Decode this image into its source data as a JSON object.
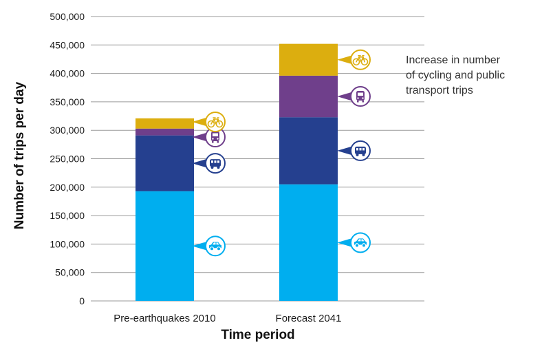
{
  "chart_data": {
    "type": "bar",
    "stacked": true,
    "categories": [
      "Pre-earthquakes 2010",
      "Forecast 2041"
    ],
    "series": [
      {
        "icon": "car-icon",
        "color": "#00aeef",
        "values": [
          193000,
          205000
        ]
      },
      {
        "icon": "car-icon",
        "color": "#25408f",
        "values": [
          98000,
          118000
        ]
      },
      {
        "icon": "bus-icon",
        "color": "#6f3f8b",
        "values": [
          12000,
          73000
        ]
      },
      {
        "icon": "bicycle-icon",
        "color": "#dcae0f",
        "values": [
          18000,
          56000
        ]
      }
    ],
    "xlabel": "Time period",
    "ylabel": "Number of trips per day",
    "ylim": [
      0,
      500000
    ],
    "yticks": [
      0,
      50000,
      100000,
      150000,
      200000,
      250000,
      300000,
      350000,
      400000,
      450000,
      500000
    ],
    "ytick_labels": [
      "0",
      "50,000",
      "100,000",
      "150,000",
      "200,000",
      "250,000",
      "300,000",
      "350,000",
      "400,000",
      "450,000",
      "500,000"
    ],
    "grid": true,
    "annotation_lines": [
      "Increase in number",
      "of cycling and public",
      "transport trips"
    ]
  }
}
